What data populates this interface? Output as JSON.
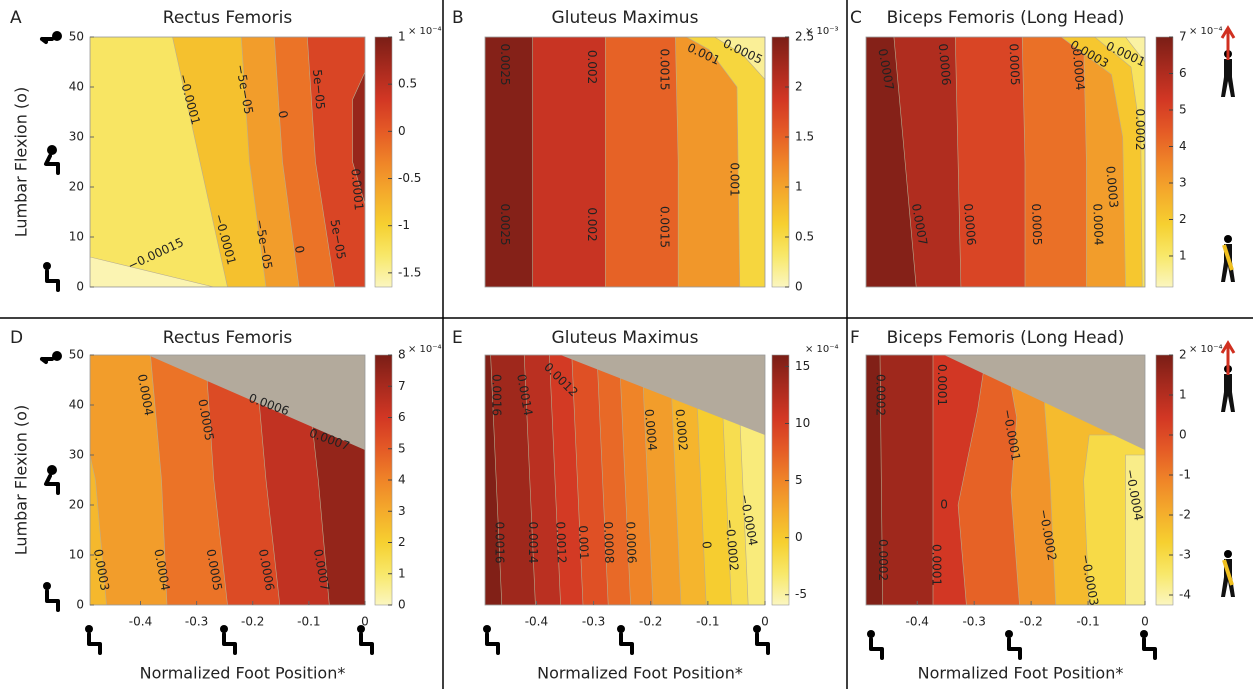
{
  "chart_data": [
    {
      "type": "contour",
      "panel": "A",
      "title": "Rectus Femoris",
      "ylabel": "Lumbar Flexion (o)",
      "ylim": [
        0,
        50
      ],
      "yticks": [
        0,
        10,
        20,
        30,
        40,
        50
      ],
      "colorbar": {
        "lim": [
          -1.65,
          1
        ],
        "ticks": [
          1,
          0.5,
          0,
          -0.5,
          -1,
          -1.5
        ],
        "exponent": "× 10⁻⁴"
      },
      "contour_labels": [
        "−0.0001",
        "−5e−05",
        "0",
        "5e−05",
        "0.0001",
        "−0.00015",
        "−0.0001",
        "−5e−05",
        "0",
        "5e−05"
      ]
    },
    {
      "type": "contour",
      "panel": "B",
      "title": "Gluteus Maximus",
      "colorbar": {
        "lim": [
          0,
          2.5
        ],
        "ticks": [
          2.5,
          2,
          1.5,
          1,
          0.5,
          0
        ],
        "exponent": "× 10⁻³"
      },
      "contour_labels": [
        "0.0025",
        "0.002",
        "0.0015",
        "0.001",
        "0.0005",
        "0.0025",
        "0.002",
        "0.0015",
        "0.001"
      ]
    },
    {
      "type": "contour",
      "panel": "C",
      "title": "Biceps Femoris (Long Head)",
      "colorbar": {
        "lim": [
          0.15,
          7
        ],
        "ticks": [
          7,
          6,
          5,
          4,
          3,
          2,
          1
        ],
        "exponent": "× 10⁻⁴"
      },
      "contour_labels": [
        "0.0007",
        "0.0006",
        "0.0005",
        "0.0004",
        "0.0003",
        "0.0001",
        "0.0002",
        "0.0007",
        "0.0006",
        "0.0005",
        "0.0004",
        "0.0003"
      ]
    },
    {
      "type": "contour",
      "panel": "D",
      "title": "Rectus Femoris",
      "ylabel": "Lumbar Flexion (o)",
      "ylim": [
        0,
        50
      ],
      "yticks": [
        0,
        10,
        20,
        30,
        40,
        50
      ],
      "xlabel": "Normalized Foot Position*",
      "xlim": [
        -0.49,
        0
      ],
      "xticks": [
        -0.4,
        -0.3,
        -0.2,
        -0.1,
        0
      ],
      "colorbar": {
        "lim": [
          0,
          8
        ],
        "ticks": [
          8,
          7,
          6,
          5,
          4,
          3,
          2,
          1,
          0
        ],
        "exponent": "× 10⁻⁴"
      },
      "contour_labels": [
        "0.0004",
        "0.0005",
        "0.0006",
        "0.0007",
        "0.0003",
        "0.0004",
        "0.0005",
        "0.0006",
        "0.0007"
      ]
    },
    {
      "type": "contour",
      "panel": "E",
      "title": "Gluteus Maximus",
      "xlabel": "Normalized Foot Position*",
      "xlim": [
        -0.49,
        0
      ],
      "xticks": [
        -0.4,
        -0.3,
        -0.2,
        -0.1,
        0
      ],
      "colorbar": {
        "lim": [
          -5.9,
          16
        ],
        "ticks": [
          15,
          10,
          5,
          0,
          -5
        ],
        "exponent": "× 10⁻⁴"
      },
      "contour_labels": [
        "0.0016",
        "0.0014",
        "0.0012",
        "0.0016",
        "0.0014",
        "0.0012",
        "0.001",
        "0.0008",
        "0.0006",
        "0.0004",
        "0.0002",
        "0",
        "−0.0002",
        "−0.0004"
      ]
    },
    {
      "type": "contour",
      "panel": "F",
      "title": "Biceps Femoris (Long Head)",
      "xlabel": "Normalized Foot Position*",
      "xlim": [
        -0.49,
        0
      ],
      "xticks": [
        -0.4,
        -0.3,
        -0.2,
        -0.1,
        0
      ],
      "colorbar": {
        "lim": [
          -4.25,
          2
        ],
        "ticks": [
          2,
          1,
          0,
          -1,
          -2,
          -3,
          -4
        ],
        "exponent": "× 10⁻⁴"
      },
      "contour_labels": [
        "0.0002",
        "0.0001",
        "−0.0001",
        "0",
        "−0.0002",
        "−0.0004",
        "0.0002",
        "0.0001",
        "−0.0003"
      ]
    }
  ]
}
